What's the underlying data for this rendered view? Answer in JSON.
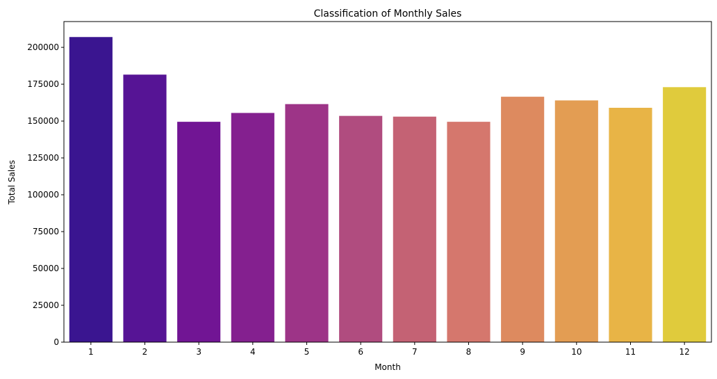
{
  "chart_data": {
    "type": "bar",
    "title": "Classification of Monthly Sales",
    "xlabel": "Month",
    "ylabel": "Total Sales",
    "categories": [
      "1",
      "2",
      "3",
      "4",
      "5",
      "6",
      "7",
      "8",
      "9",
      "10",
      "11",
      "12"
    ],
    "values": [
      207000,
      181500,
      149500,
      155500,
      161500,
      153500,
      153000,
      149500,
      166500,
      164000,
      159000,
      173000
    ],
    "colors": [
      "#3a1590",
      "#561495",
      "#711594",
      "#84208f",
      "#9d3487",
      "#b04c7f",
      "#c46274",
      "#d5776d",
      "#dd8a5f",
      "#e39d53",
      "#e8b446",
      "#e0cb3c"
    ],
    "ylim": [
      0,
      217500
    ],
    "yticks": [
      0,
      25000,
      50000,
      75000,
      100000,
      125000,
      150000,
      175000,
      200000
    ],
    "grid": false,
    "legend": "none"
  }
}
